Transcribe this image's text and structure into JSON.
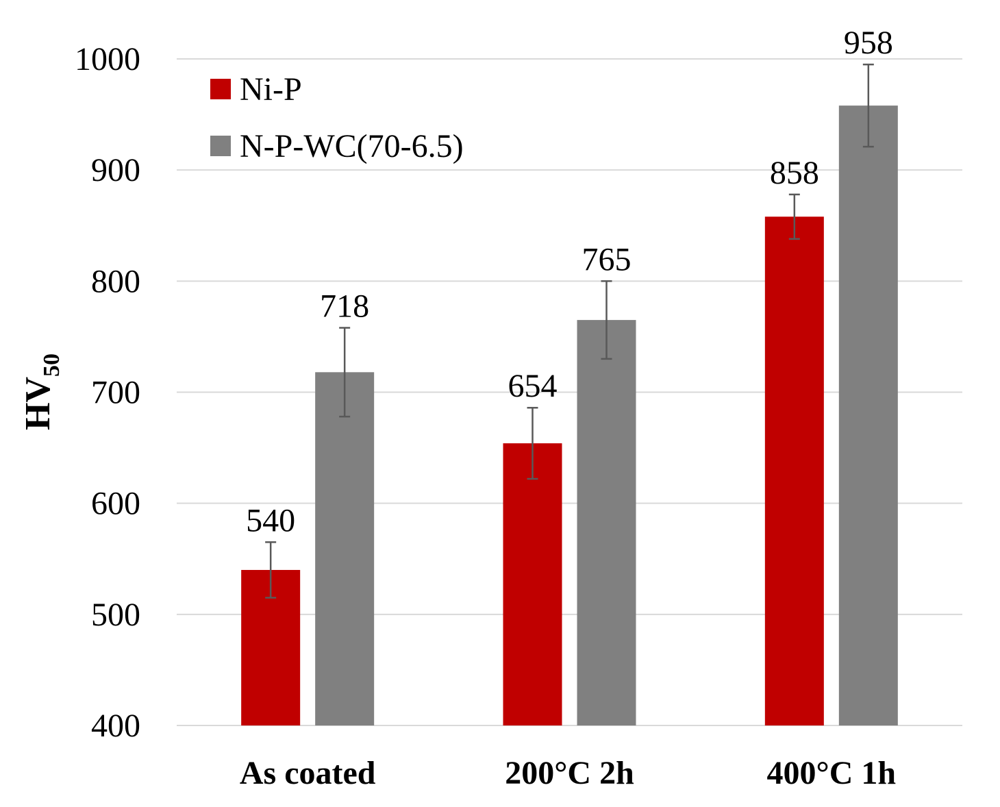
{
  "chart_data": {
    "type": "bar",
    "categories": [
      "As coated",
      "200°C 2h",
      "400°C 1h"
    ],
    "series": [
      {
        "name": "Ni-P",
        "color": "#c00000",
        "values": [
          540,
          654,
          858
        ],
        "errors": [
          25,
          32,
          20
        ]
      },
      {
        "name": "N-P-WC(70-6.5)",
        "color": "#808080",
        "values": [
          718,
          765,
          958
        ],
        "errors": [
          40,
          35,
          37
        ]
      }
    ],
    "ylabel_main": "HV",
    "ylabel_sub": "50",
    "ylim": [
      400,
      1000
    ],
    "yticks": [
      400,
      500,
      600,
      700,
      800,
      900,
      1000
    ],
    "grid": true,
    "legend_position": "top-left"
  }
}
